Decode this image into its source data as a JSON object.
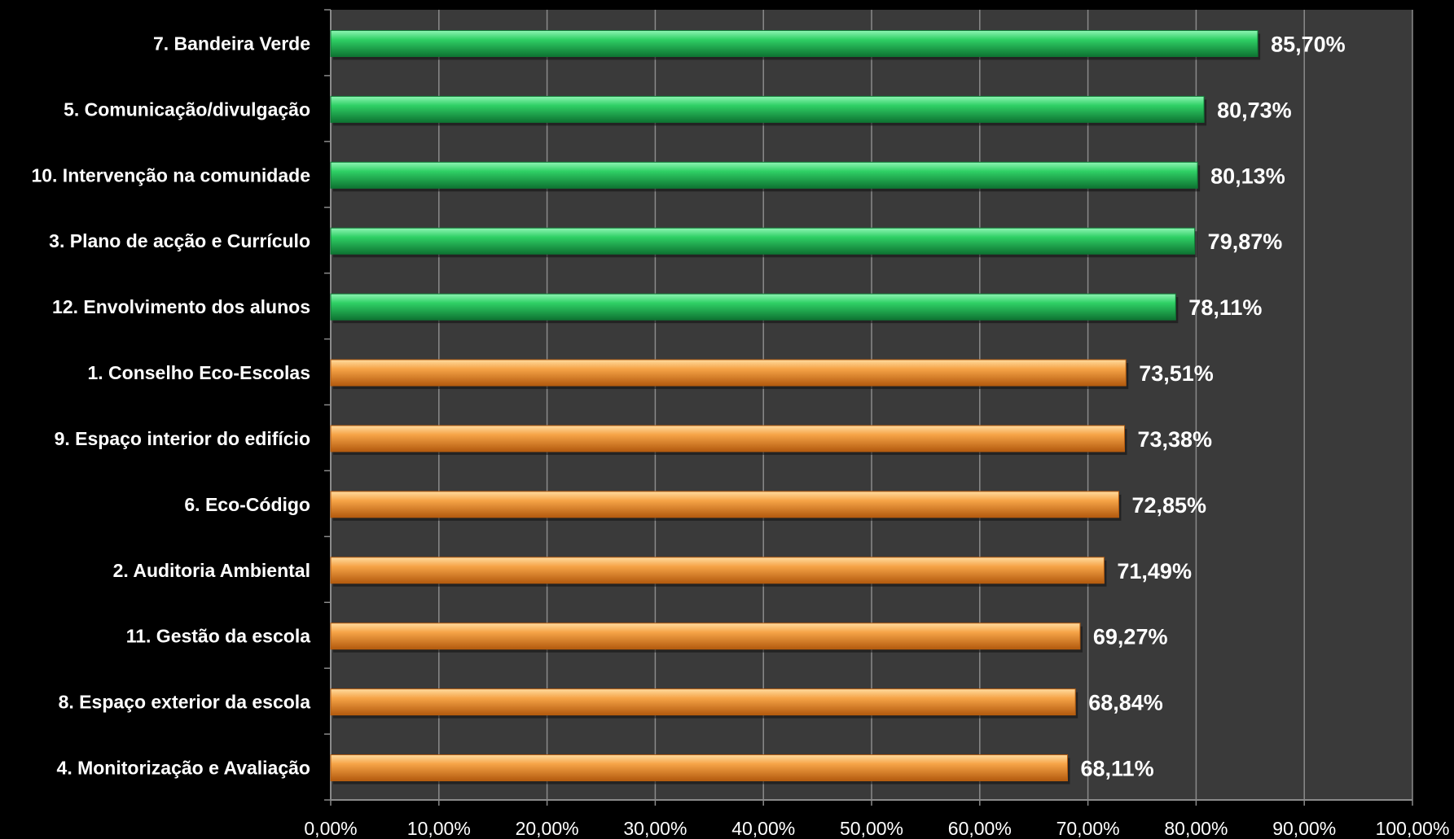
{
  "chart_data": {
    "type": "bar",
    "orientation": "horizontal",
    "categories": [
      "7. Bandeira Verde",
      "5. Comunicação/divulgação",
      "10. Intervenção na comunidade",
      "3. Plano de acção e Currículo",
      "12. Envolvimento dos alunos",
      "1. Conselho Eco-Escolas",
      "9. Espaço interior do edifício",
      "6. Eco-Código",
      "2. Auditoria Ambiental",
      "11. Gestão da escola",
      "8. Espaço exterior da escola",
      "4. Monitorização e Avaliação"
    ],
    "values": [
      85.7,
      80.73,
      80.13,
      79.87,
      78.11,
      73.51,
      73.38,
      72.85,
      71.49,
      69.27,
      68.84,
      68.11
    ],
    "value_labels": [
      "85,70%",
      "80,73%",
      "80,13%",
      "79,87%",
      "78,11%",
      "73,51%",
      "73,38%",
      "72,85%",
      "71,49%",
      "69,27%",
      "68,84%",
      "68,11%"
    ],
    "bar_colors": [
      "green",
      "green",
      "green",
      "green",
      "green",
      "orange",
      "orange",
      "orange",
      "orange",
      "orange",
      "orange",
      "orange"
    ],
    "xlim": [
      0,
      100
    ],
    "x_ticks": [
      "0,00%",
      "10,00%",
      "20,00%",
      "30,00%",
      "40,00%",
      "50,00%",
      "60,00%",
      "70,00%",
      "80,00%",
      "90,00%",
      "100,00%"
    ],
    "title": "",
    "xlabel": "",
    "ylabel": "",
    "grid": true,
    "legend": "none"
  },
  "colors": {
    "background": "#000000",
    "plot_area": "#3a3a3a",
    "gridline": "#8a8a8a",
    "axis": "#8a8a8a",
    "text": "#ffffff",
    "green_light": "#7df0a6",
    "green": "#22c45a",
    "green_dark": "#0f7a35",
    "orange_light": "#ffd08a",
    "orange": "#f49a3a",
    "orange_dark": "#b85e10"
  }
}
